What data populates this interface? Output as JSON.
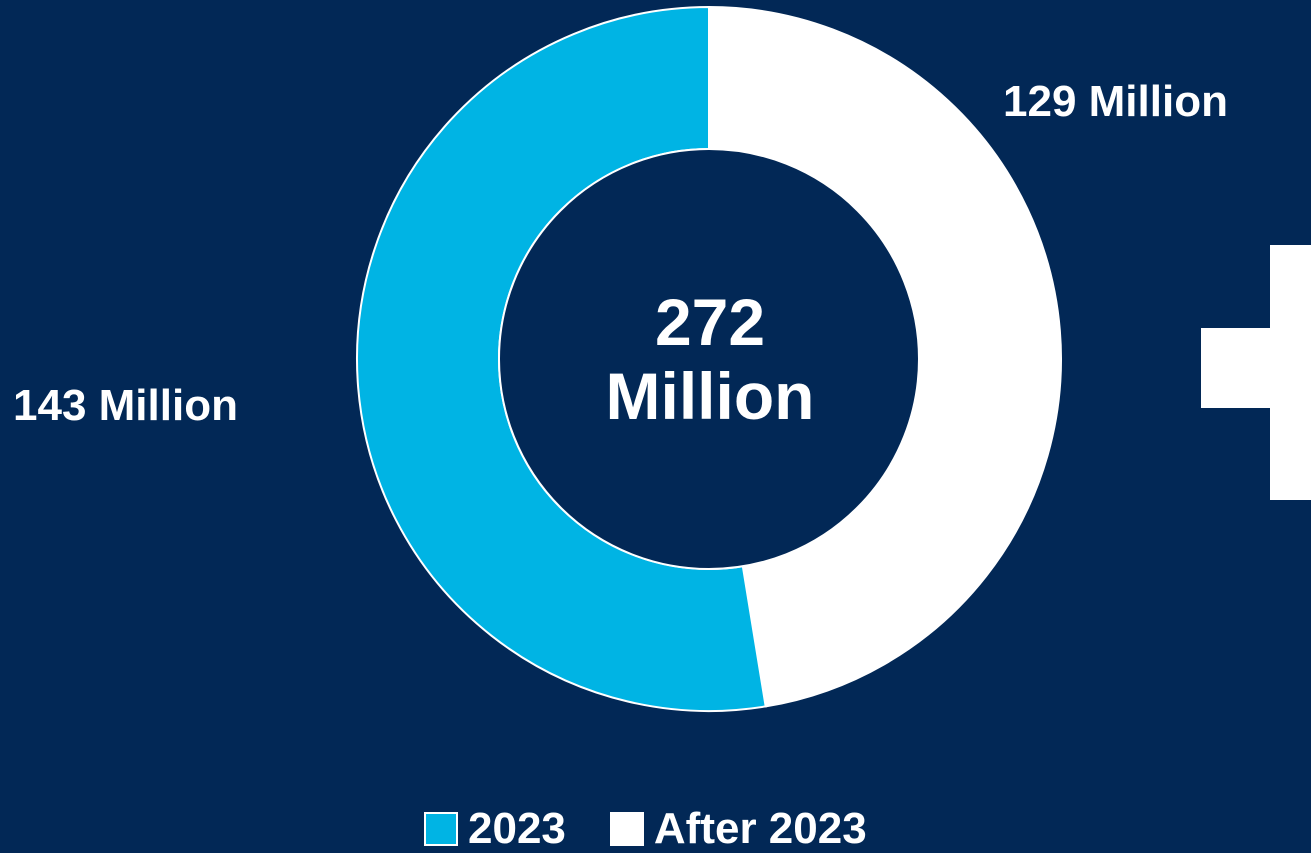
{
  "chart_data": {
    "type": "pie",
    "subtype": "donut",
    "categories": [
      "2023",
      "After 2023"
    ],
    "values": [
      143,
      129
    ],
    "data_labels": [
      "143 Million",
      "129 Million"
    ],
    "colors": [
      "#00B4E4",
      "#FFFFFF"
    ],
    "center_label": [
      "272",
      "Million"
    ],
    "legend": {
      "placement": "bottom",
      "entries": [
        "2023",
        "After 2023"
      ]
    },
    "title": "",
    "start_series": "After 2023",
    "direction": "clockwise"
  },
  "colors": {
    "background": "#022856",
    "slice_outline": "#FFFFFF"
  },
  "decorations": {
    "plus_sign_icon": "plus-icon"
  }
}
